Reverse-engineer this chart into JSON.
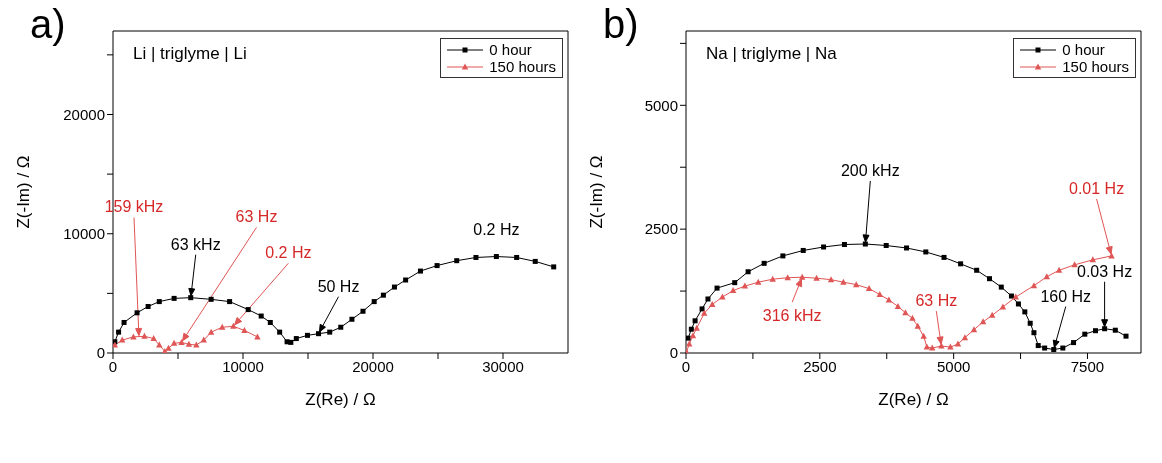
{
  "chart_data": [
    {
      "type": "line",
      "title": "a)",
      "subtitle": "Li | triglyme | Li",
      "xlabel": "Z(Re) / Ω",
      "ylabel": "Z(-Im) / Ω",
      "xlim": [
        0,
        35000
      ],
      "ylim": [
        0,
        27000
      ],
      "xticks": [
        0,
        {
          "value": 5000,
          "label": null
        },
        10000,
        {
          "value": 15000,
          "label": null
        },
        20000,
        {
          "value": 25000,
          "label": null
        },
        30000
      ],
      "yticks": [
        0,
        {
          "value": 5000,
          "label": null
        },
        10000,
        {
          "value": 15000,
          "label": null
        },
        20000,
        {
          "value": 25000,
          "label": null
        }
      ],
      "grid": false,
      "legend": "top right",
      "line_style": "solid",
      "series": [
        {
          "name": "0 hour",
          "color": "#000000",
          "marker": "square",
          "x": [
            140,
            430,
            850,
            1850,
            2700,
            3560,
            4700,
            5980,
            7550,
            8970,
            10400,
            11400,
            12100,
            12820,
            13390,
            13680,
            14100,
            14960,
            15810,
            16670,
            17520,
            18380,
            19230,
            20090,
            20800,
            21650,
            22510,
            23650,
            24930,
            26440,
            27920,
            29490,
            31050,
            32480,
            33900
          ],
          "values": [
            940,
            1750,
            2560,
            3370,
            3900,
            4310,
            4580,
            4640,
            4500,
            4310,
            3640,
            3100,
            2560,
            1750,
            940,
            890,
            1210,
            1480,
            1620,
            1750,
            2160,
            2830,
            3500,
            4310,
            4850,
            5530,
            6120,
            6870,
            7330,
            7740,
            8010,
            8090,
            8010,
            7680,
            7220
          ]
        },
        {
          "name": "150 hours",
          "color": "#e05555",
          "marker": "triangle",
          "x": [
            140,
            710,
            1570,
            2420,
            3130,
            3560,
            3990,
            4270,
            4700,
            5270,
            5840,
            6410,
            6980,
            7550,
            8400,
            9260,
            10110,
            11110
          ],
          "values": [
            670,
            1080,
            1350,
            1400,
            1210,
            670,
            130,
            400,
            810,
            890,
            730,
            670,
            1080,
            1750,
            2160,
            2240,
            1890,
            1350
          ]
        }
      ],
      "annotations": [
        {
          "text": "159 kHz",
          "x": 2000,
          "y": 1300
        },
        {
          "text": "63 kHz",
          "x": 5980,
          "y": 4640
        },
        {
          "text": "63 Hz",
          "x": 5270,
          "y": 890
        },
        {
          "text": "0.2 Hz",
          "x": 9260,
          "y": 2240
        },
        {
          "text": "50 Hz",
          "x": 15810,
          "y": 1620
        },
        {
          "text": "0.2 Hz",
          "x": 29490,
          "y": 8090
        }
      ]
    },
    {
      "type": "line",
      "title": "b)",
      "subtitle": "Na | triglyme | Na",
      "xlabel": "Z(Re) / Ω",
      "ylabel": "Z(-Im) / Ω",
      "xlim": [
        0,
        8500
      ],
      "ylim": [
        0,
        6500
      ],
      "xticks": [
        0,
        {
          "value": 1250,
          "label": null
        },
        2500,
        {
          "value": 3750,
          "label": null
        },
        5000,
        {
          "value": 6250,
          "label": null
        },
        7500
      ],
      "yticks": [
        0,
        {
          "value": 1250,
          "label": null
        },
        2500,
        {
          "value": 3750,
          "label": null
        },
        5000,
        {
          "value": 6250,
          "label": null
        }
      ],
      "grid": false,
      "legend": "top right",
      "line_style": "solid",
      "series": [
        {
          "name": "0 hour",
          "color": "#000000",
          "marker": "square",
          "x": [
            40,
            100,
            170,
            300,
            410,
            580,
            910,
            1160,
            1460,
            1810,
            2190,
            2570,
            2960,
            3350,
            3740,
            4120,
            4480,
            4820,
            5130,
            5430,
            5670,
            5890,
            6080,
            6210,
            6330,
            6430,
            6500,
            6580,
            6700,
            6870,
            7040,
            7240,
            7450,
            7650,
            7820,
            8020,
            8220
          ],
          "values": [
            300,
            480,
            650,
            890,
            1090,
            1310,
            1420,
            1640,
            1810,
            1960,
            2070,
            2140,
            2190,
            2200,
            2170,
            2120,
            2040,
            1930,
            1800,
            1670,
            1500,
            1330,
            1150,
            990,
            830,
            600,
            410,
            150,
            100,
            70,
            100,
            210,
            380,
            450,
            490,
            460,
            340
          ]
        },
        {
          "name": "150 hours",
          "color": "#e05555",
          "marker": "triangle",
          "x": [
            10,
            60,
            130,
            200,
            340,
            490,
            680,
            880,
            1100,
            1350,
            1620,
            1900,
            2170,
            2440,
            2710,
            2940,
            3180,
            3420,
            3620,
            3790,
            3960,
            4100,
            4230,
            4330,
            4440,
            4500,
            4600,
            4770,
            4940,
            5080,
            5210,
            5380,
            5550,
            5720,
            5920,
            6160,
            6500,
            6740,
            6970,
            7260,
            7600,
            7950
          ],
          "values": [
            20,
            180,
            350,
            500,
            800,
            980,
            1130,
            1260,
            1350,
            1430,
            1490,
            1520,
            1530,
            1510,
            1480,
            1430,
            1380,
            1300,
            1180,
            1070,
            940,
            810,
            700,
            540,
            340,
            120,
            100,
            140,
            120,
            180,
            310,
            470,
            630,
            760,
            930,
            1130,
            1360,
            1540,
            1670,
            1780,
            1880,
            1960
          ]
        }
      ],
      "annotations": [
        {
          "text": "200 kHz",
          "x": 3350,
          "y": 2200
        },
        {
          "text": "316 kHz",
          "x": 2170,
          "y": 1530
        },
        {
          "text": "63 Hz",
          "x": 4770,
          "y": 140
        },
        {
          "text": "160 Hz",
          "x": 6870,
          "y": 70
        },
        {
          "text": "0.03 Hz",
          "x": 7820,
          "y": 490
        },
        {
          "text": "0.01 Hz",
          "x": 7950,
          "y": 1960
        }
      ]
    }
  ]
}
